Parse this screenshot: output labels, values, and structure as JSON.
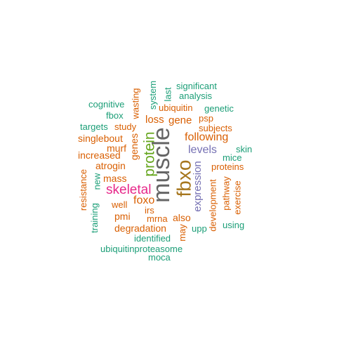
{
  "colors": {
    "teal": "#1b9e77",
    "orange": "#d95f02",
    "purple": "#7570b3",
    "magenta": "#e7298a",
    "green": "#66a61e",
    "gold": "#a6761d",
    "gray": "#666666"
  },
  "words": {
    "muscle": "muscle",
    "fbxo": "fbxo",
    "protein": "protein",
    "skeletal": "skeletal",
    "expression": "expression",
    "levels": "levels",
    "following": "following",
    "gene": "gene",
    "loss": "loss",
    "ubiquitin": "ubiquitin",
    "significant": "significant",
    "analysis": "analysis",
    "genetic": "genetic",
    "psp": "psp",
    "subjects": "subjects",
    "system": "system",
    "last": "last",
    "wasting": "wasting",
    "cognitive": "cognitive",
    "fbox": "fbox",
    "targets": "targets",
    "study": "study",
    "singlebout": "singlebout",
    "murf": "murf",
    "genes": "genes",
    "increased": "increased",
    "atrogin": "atrogin",
    "mass": "mass",
    "new": "new",
    "resistance": "resistance",
    "training": "training",
    "foxo": "foxo",
    "well": "well",
    "irs": "irs",
    "pmi": "pmi",
    "mrna": "mrna",
    "also": "also",
    "may": "may",
    "degradation": "degradation",
    "identified": "identified",
    "upp": "upp",
    "ubiquitinproteasome": "ubiquitinproteasome",
    "moca": "moca",
    "skin": "skin",
    "mice": "mice",
    "proteins": "proteins",
    "development": "development",
    "pathway": "pathway",
    "exercise": "exercise",
    "using": "using"
  }
}
